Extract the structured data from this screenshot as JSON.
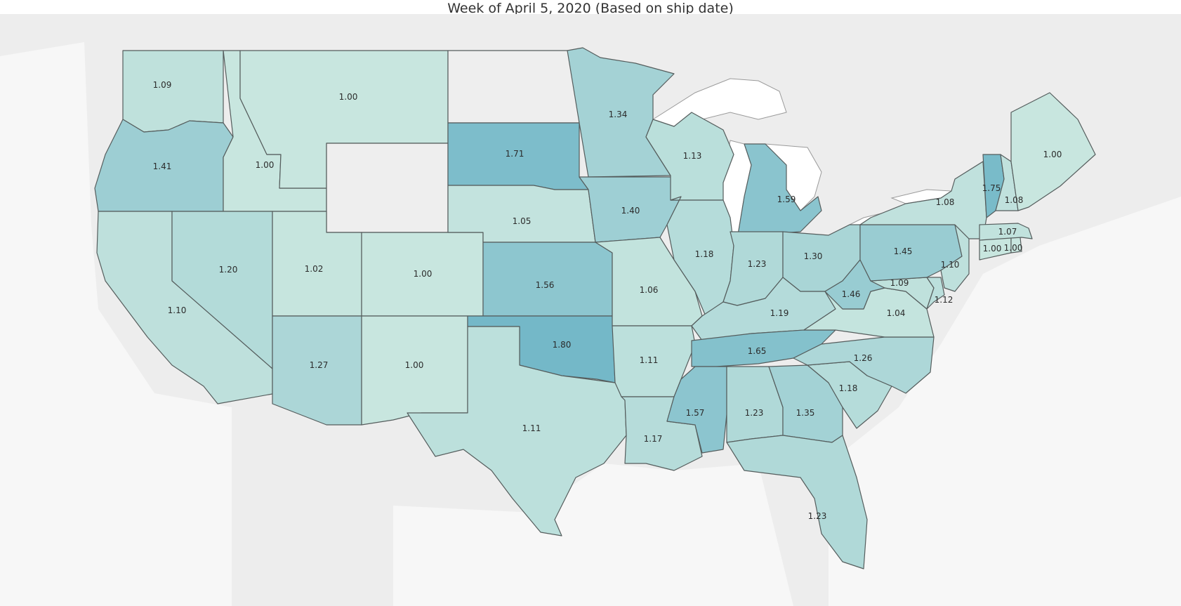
{
  "title": "Week of April 5, 2020 (Based on ship date)",
  "colors": {
    "background": "#ededed",
    "lakes": "#ffffff",
    "no_data": "#eeeeee",
    "scale_low": "#c8e6df",
    "scale_high": "#74b8c8",
    "border": "#555d5d"
  },
  "map_data": {
    "type": "choropleth",
    "region": "United States",
    "values": [
      {
        "state": "WA",
        "value": "1.09"
      },
      {
        "state": "OR",
        "value": "1.41"
      },
      {
        "state": "CA",
        "value": "1.10"
      },
      {
        "state": "ID",
        "value": "1.00"
      },
      {
        "state": "NV",
        "value": "1.20"
      },
      {
        "state": "MT",
        "value": "1.00"
      },
      {
        "state": "WY",
        "value": null
      },
      {
        "state": "UT",
        "value": "1.02"
      },
      {
        "state": "AZ",
        "value": "1.27"
      },
      {
        "state": "CO",
        "value": "1.00"
      },
      {
        "state": "NM",
        "value": "1.00"
      },
      {
        "state": "ND",
        "value": null
      },
      {
        "state": "SD",
        "value": "1.71"
      },
      {
        "state": "NE",
        "value": "1.05"
      },
      {
        "state": "KS",
        "value": "1.56"
      },
      {
        "state": "OK",
        "value": "1.80"
      },
      {
        "state": "TX",
        "value": "1.11"
      },
      {
        "state": "MN",
        "value": "1.34"
      },
      {
        "state": "IA",
        "value": "1.40"
      },
      {
        "state": "MO",
        "value": "1.06"
      },
      {
        "state": "AR",
        "value": "1.11"
      },
      {
        "state": "LA",
        "value": "1.17"
      },
      {
        "state": "WI",
        "value": "1.13"
      },
      {
        "state": "IL",
        "value": "1.18"
      },
      {
        "state": "MI",
        "value": "1.59"
      },
      {
        "state": "IN",
        "value": "1.23"
      },
      {
        "state": "OH",
        "value": "1.30"
      },
      {
        "state": "KY",
        "value": "1.19"
      },
      {
        "state": "TN",
        "value": "1.65"
      },
      {
        "state": "MS",
        "value": "1.57"
      },
      {
        "state": "AL",
        "value": "1.23"
      },
      {
        "state": "GA",
        "value": "1.35"
      },
      {
        "state": "FL",
        "value": "1.23"
      },
      {
        "state": "SC",
        "value": "1.18"
      },
      {
        "state": "NC",
        "value": "1.26"
      },
      {
        "state": "VA",
        "value": "1.04"
      },
      {
        "state": "WV",
        "value": "1.46"
      },
      {
        "state": "MD",
        "value": "1.09"
      },
      {
        "state": "DE",
        "value": "1.12"
      },
      {
        "state": "PA",
        "value": "1.45"
      },
      {
        "state": "NJ",
        "value": "1.10"
      },
      {
        "state": "NY",
        "value": "1.08"
      },
      {
        "state": "CT",
        "value": "1.00"
      },
      {
        "state": "RI",
        "value": "1.00"
      },
      {
        "state": "MA",
        "value": "1.07"
      },
      {
        "state": "VT",
        "value": "1.75"
      },
      {
        "state": "NH",
        "value": "1.08"
      },
      {
        "state": "ME",
        "value": "1.00"
      }
    ]
  }
}
